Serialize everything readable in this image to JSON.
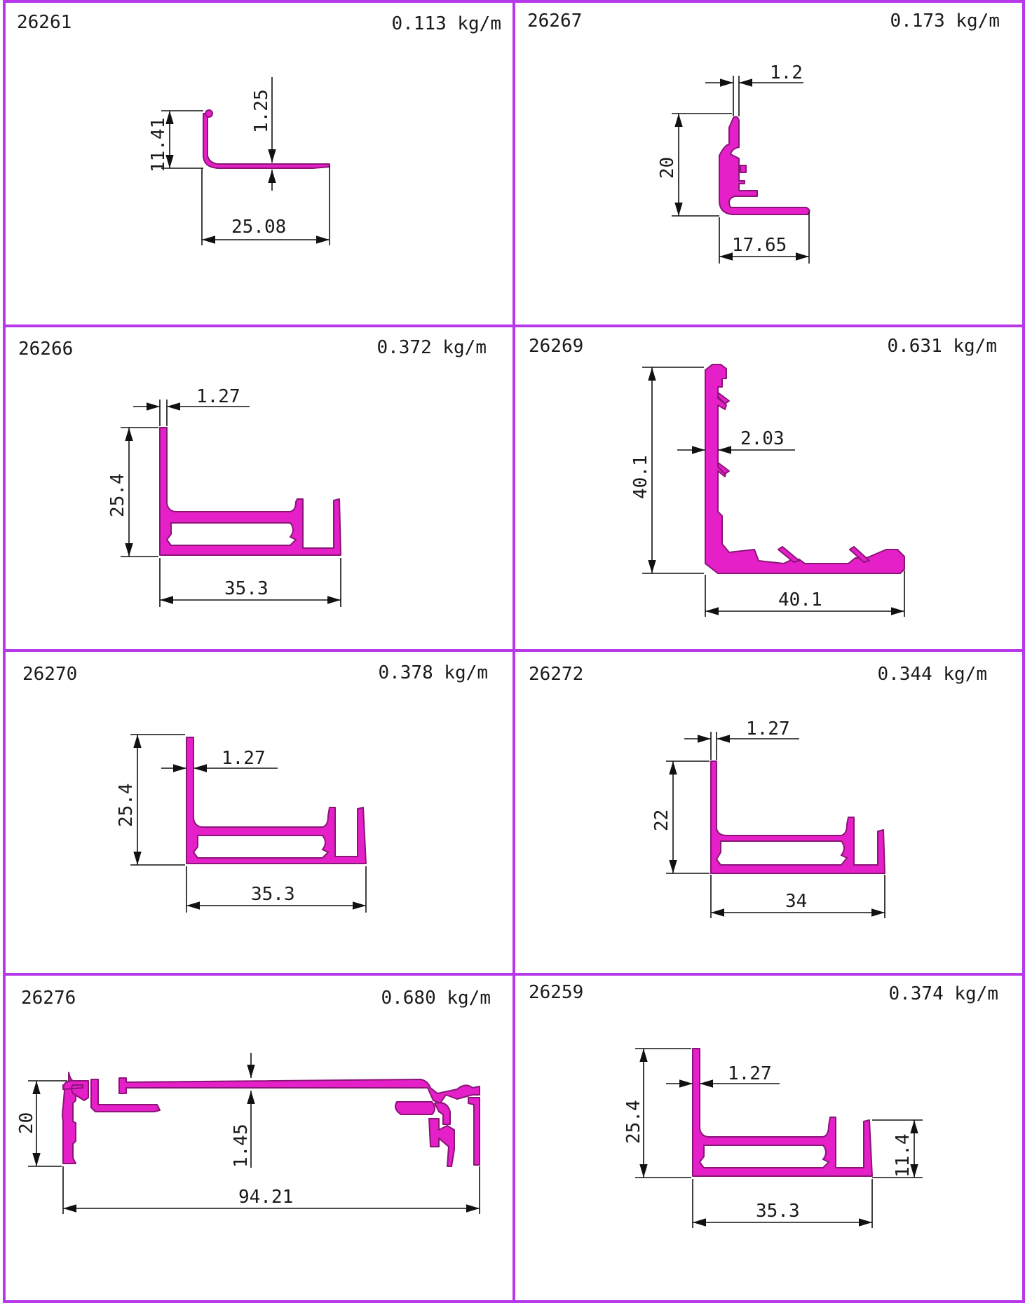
{
  "cells": [
    {
      "code": "26261",
      "weight": "0.113 kg/m",
      "dims": [
        "1.25",
        "11.41",
        "25.08"
      ]
    },
    {
      "code": "26267",
      "weight": "0.173 kg/m",
      "dims": [
        "1.2",
        "20",
        "17.65"
      ]
    },
    {
      "code": "26266",
      "weight": "0.372 kg/m",
      "dims": [
        "1.27",
        "25.4",
        "35.3"
      ]
    },
    {
      "code": "26269",
      "weight": "0.631 kg/m",
      "dims": [
        "40.1",
        "2.03",
        "40.1"
      ]
    },
    {
      "code": "26270",
      "weight": "0.378 kg/m",
      "dims": [
        "25.4",
        "1.27",
        "35.3"
      ]
    },
    {
      "code": "26272",
      "weight": "0.344 kg/m",
      "dims": [
        "1.27",
        "22",
        "34"
      ]
    },
    {
      "code": "26276",
      "weight": "0.680 kg/m",
      "dims": [
        "20",
        "1.45",
        "94.21"
      ]
    },
    {
      "code": "26259",
      "weight": "0.374 kg/m",
      "dims": [
        "25.4",
        "1.27",
        "11.4",
        "35.3"
      ]
    }
  ],
  "colors": {
    "grid": "#b638e8",
    "profile": "#e620c8"
  }
}
